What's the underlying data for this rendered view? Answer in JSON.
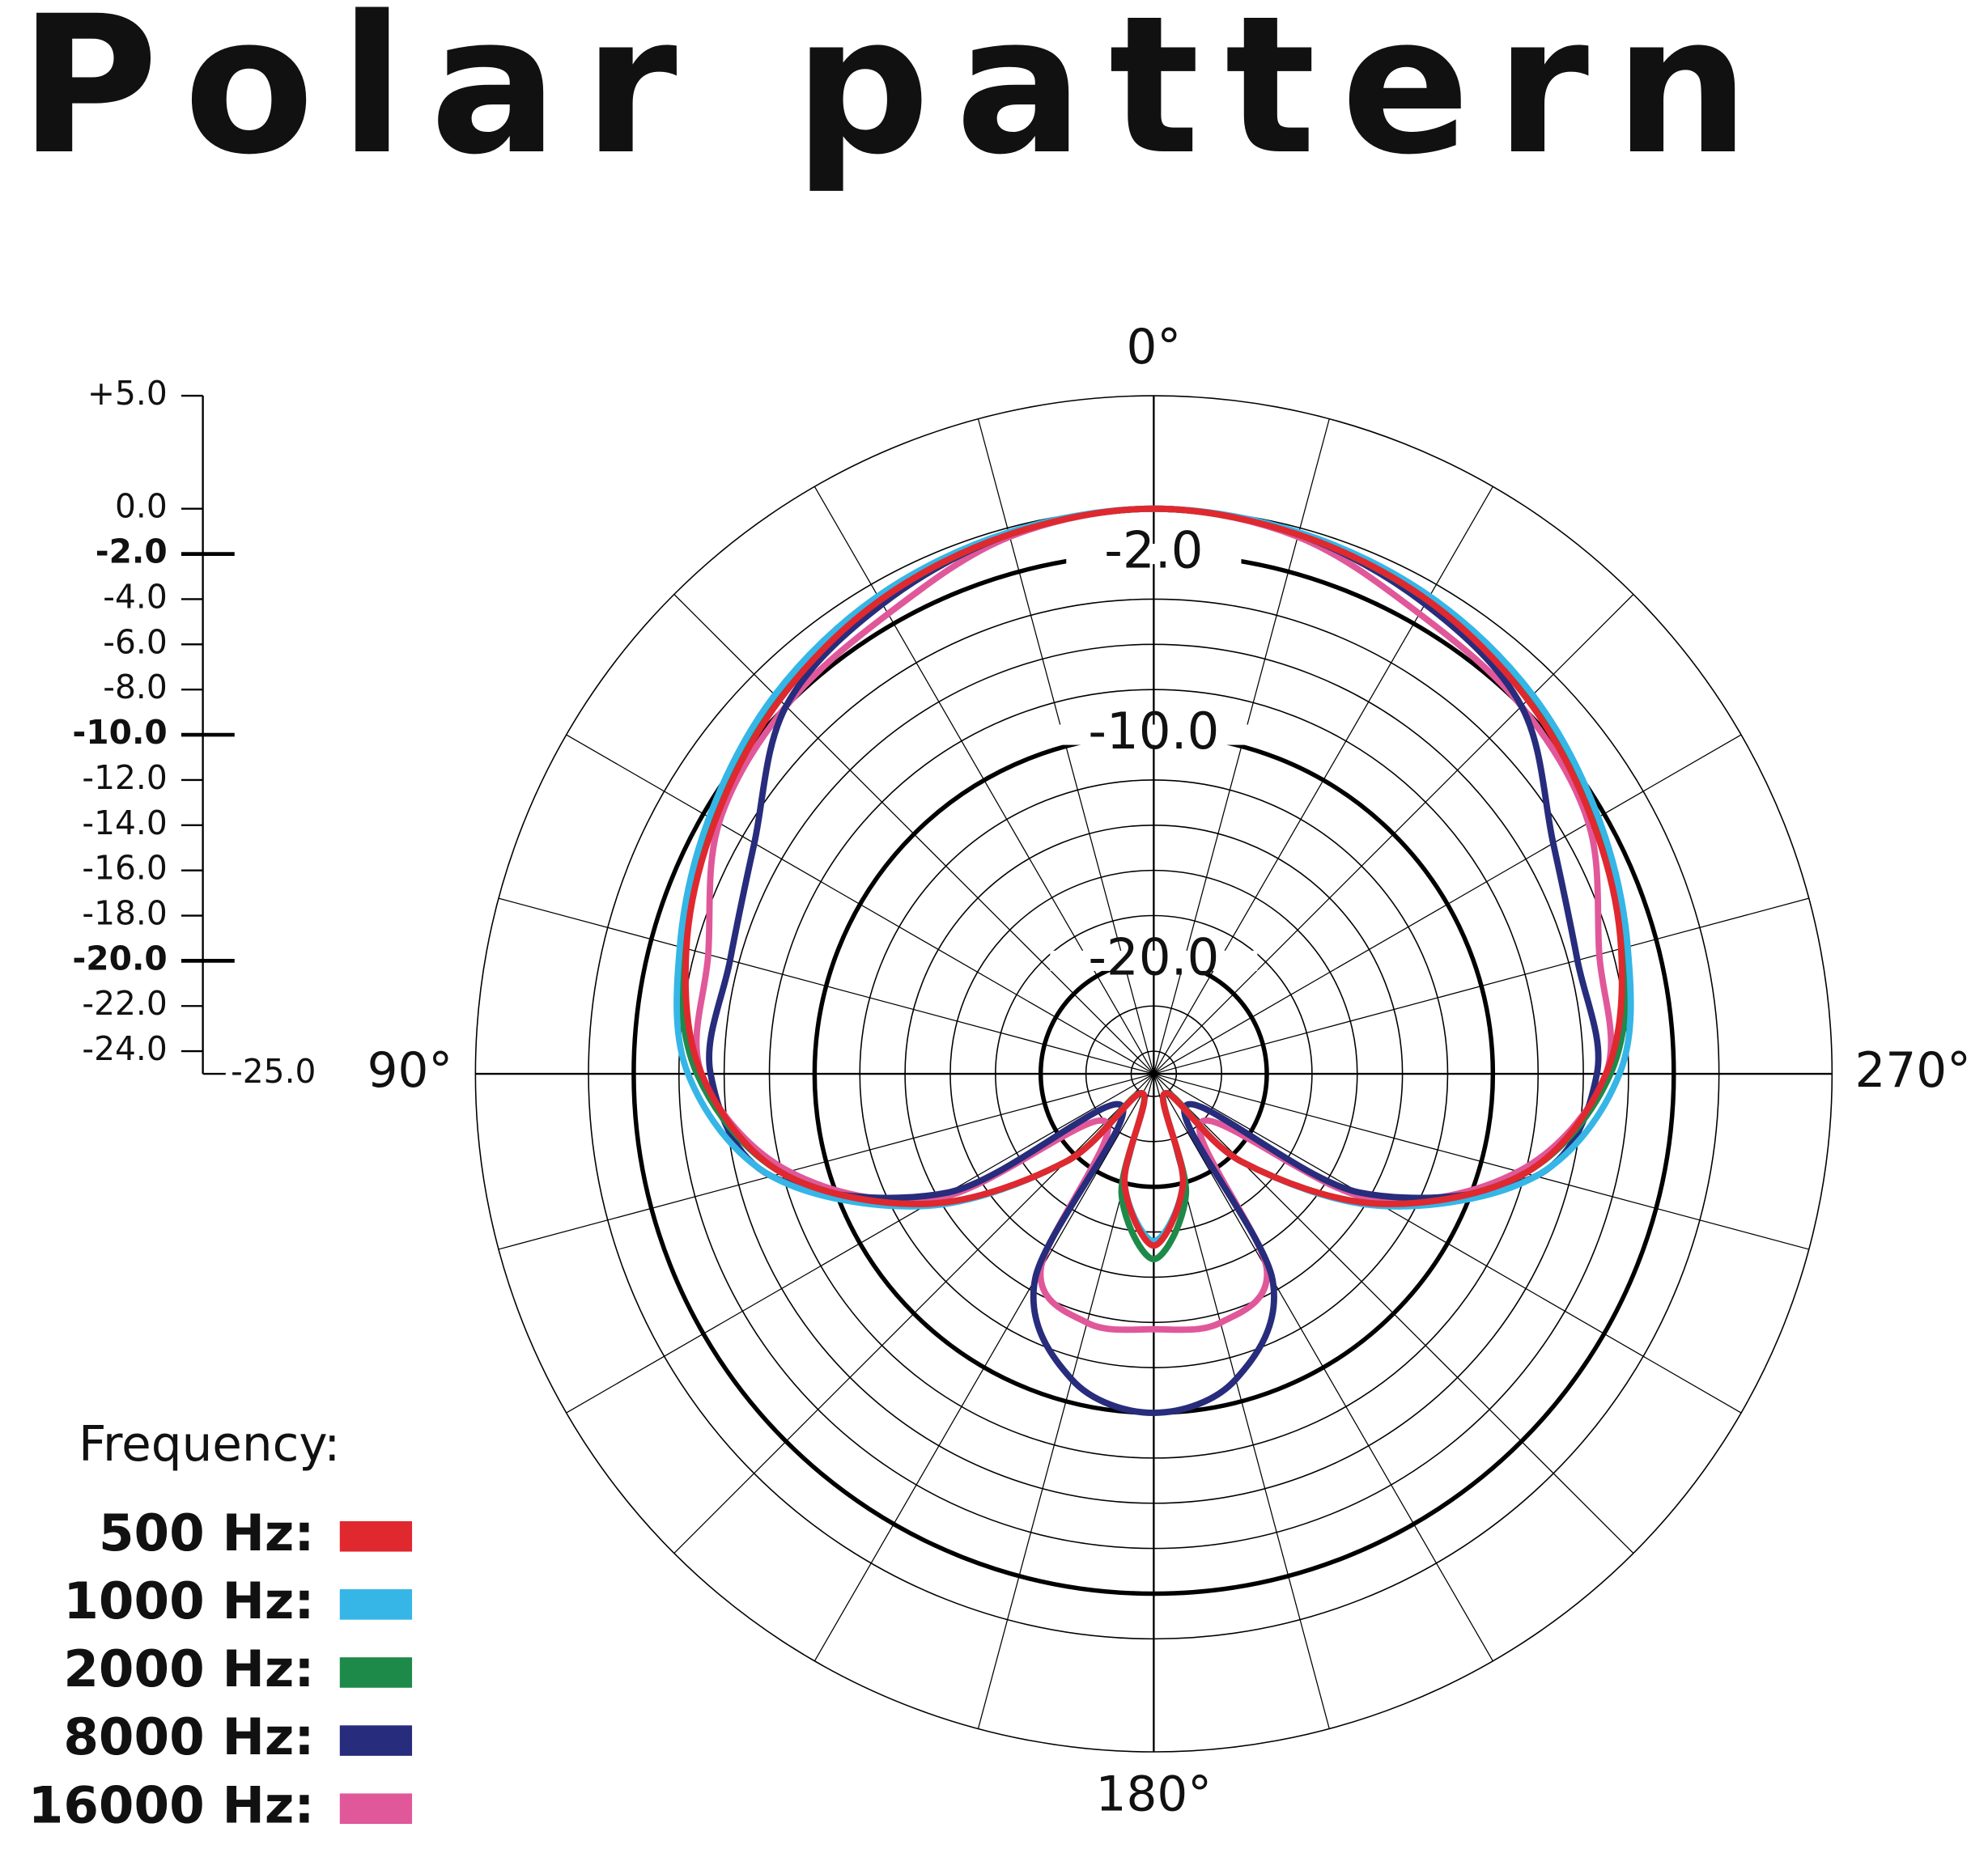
{
  "chart_data": {
    "type": "polar",
    "title": "Polar pattern",
    "legend_title": "Frequency:",
    "legend": "lower left",
    "theta_zero": "top",
    "theta_direction": "counterclockwise",
    "theta": [
      0,
      15,
      30,
      45,
      60,
      75,
      90,
      105,
      120,
      135,
      150,
      165,
      180,
      195,
      210,
      225,
      240,
      255,
      270,
      285,
      300,
      315,
      330,
      345
    ],
    "thetaticks": [
      0,
      15,
      30,
      45,
      60,
      75,
      90,
      105,
      120,
      135,
      150,
      165,
      180,
      195,
      210,
      225,
      240,
      255,
      270,
      285,
      300,
      315,
      330,
      345
    ],
    "theta_labels": [
      {
        "value": 0,
        "label": "0°"
      },
      {
        "value": 90,
        "label": "90°"
      },
      {
        "value": 180,
        "label": "180°"
      },
      {
        "value": 270,
        "label": "270°"
      }
    ],
    "rlim": [
      -25,
      5
    ],
    "rticks": [
      {
        "value": 5,
        "label": "+5.0"
      },
      {
        "value": 0,
        "label": "0.0"
      },
      {
        "value": -2,
        "label": "-2.0"
      },
      {
        "value": -4,
        "label": "-4.0"
      },
      {
        "value": -6,
        "label": "-6.0"
      },
      {
        "value": -8,
        "label": "-8.0"
      },
      {
        "value": -10,
        "label": "-10.0"
      },
      {
        "value": -12,
        "label": "-12.0"
      },
      {
        "value": -14,
        "label": "-14.0"
      },
      {
        "value": -16,
        "label": "-16.0"
      },
      {
        "value": -18,
        "label": "-18.0"
      },
      {
        "value": -20,
        "label": "-20.0"
      },
      {
        "value": -22,
        "label": "-22.0"
      },
      {
        "value": -24,
        "label": "-24.0"
      },
      {
        "value": -25,
        "label": "-25.0"
      }
    ],
    "major_rticks": [
      -2,
      -10,
      -20
    ],
    "series": [
      {
        "name": "500 Hz:",
        "color": "#e0282f",
        "values": [
          0,
          -0.3,
          -0.8,
          -1.6,
          -2.6,
          -3.6,
          -5,
          -8,
          -13.5,
          -19.5,
          -24,
          -20,
          -17.4,
          -20,
          -24,
          -19.5,
          -13.5,
          -8,
          -5,
          -3.6,
          -2.6,
          -1.6,
          -0.8,
          -0.3
        ]
      },
      {
        "name": "1000 Hz:",
        "color": "#35b6e6",
        "values": [
          0,
          -0.2,
          -0.6,
          -1.3,
          -2.3,
          -3.3,
          -4.4,
          -7.5,
          -13.3,
          -19.5,
          -24,
          -20,
          -17.6,
          -20,
          -24,
          -19.5,
          -13.3,
          -7.5,
          -4.4,
          -3.3,
          -2.3,
          -1.3,
          -0.6,
          -0.2
        ]
      },
      {
        "name": "2000 Hz:",
        "color": "#1e8a4a",
        "values": [
          0,
          -0.3,
          -0.8,
          -1.5,
          -2.4,
          -3.4,
          -4.8,
          -8,
          -13.5,
          -19.5,
          -24,
          -19.5,
          -16.8,
          -19.5,
          -24,
          -19.5,
          -13.5,
          -8,
          -4.8,
          -3.4,
          -2.4,
          -1.5,
          -0.8,
          -0.3
        ]
      },
      {
        "name": "8000 Hz:",
        "color": "#282c7c",
        "values": [
          0,
          -0.3,
          -1,
          -2,
          -4.6,
          -5.6,
          -5.4,
          -7.5,
          -14.5,
          -23,
          -14.5,
          -11,
          -10,
          -11,
          -14.5,
          -23,
          -14.5,
          -7.5,
          -5.4,
          -5.6,
          -4.6,
          -2,
          -1,
          -0.3
        ]
      },
      {
        "name": "16000 Hz:",
        "color": "#e0589a",
        "values": [
          0,
          -0.4,
          -1.5,
          -2,
          -2.8,
          -4.6,
          -5,
          -8.3,
          -14,
          -22,
          -15,
          -13.6,
          -13.7,
          -13.6,
          -15,
          -22,
          -14,
          -8.3,
          -5,
          -4.6,
          -2.8,
          -2,
          -1.5,
          -0.4
        ]
      }
    ]
  }
}
